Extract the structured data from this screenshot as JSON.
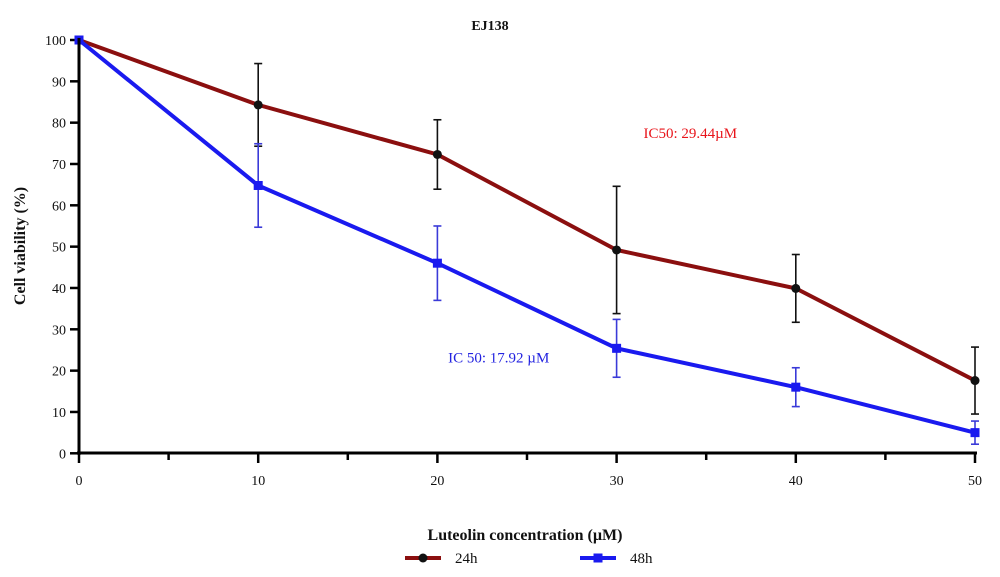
{
  "chart_data": {
    "type": "line",
    "title": "EJ138",
    "xlabel": "Luteolin concentration (µM)",
    "ylabel": "Cell viability (%)",
    "xlim": [
      0,
      50
    ],
    "ylim": [
      0,
      100
    ],
    "xticks": [
      0,
      10,
      20,
      30,
      40,
      50
    ],
    "yticks": [
      0,
      10,
      20,
      30,
      40,
      50,
      60,
      70,
      80,
      90,
      100
    ],
    "grid": false,
    "legend_position": "bottom",
    "x": [
      0,
      10,
      20,
      30,
      40,
      50
    ],
    "series": [
      {
        "name": "24h",
        "color": "#8b0f0f",
        "marker": "circle",
        "marker_color": "#111111",
        "error_color": "#111111",
        "values": [
          100,
          84.3,
          72.3,
          49.2,
          39.9,
          17.6
        ],
        "errors": [
          0,
          10.0,
          8.4,
          15.4,
          8.2,
          8.1
        ]
      },
      {
        "name": "48h",
        "color": "#1a1aef",
        "marker": "square",
        "marker_color": "#1a1aef",
        "error_color": "#3a3ad8",
        "values": [
          100,
          64.8,
          46.0,
          25.4,
          16.0,
          5.0
        ],
        "errors": [
          0,
          10.1,
          9.0,
          7.0,
          4.7,
          2.8
        ]
      }
    ],
    "annotations": [
      {
        "text": "IC50: 29.44µM",
        "color": "#e8141a",
        "x": 31.5,
        "y": 77.5
      },
      {
        "text": "IC 50: 17.92 µM",
        "color": "#2323e0",
        "x": 20.6,
        "y": 23.2
      }
    ]
  }
}
